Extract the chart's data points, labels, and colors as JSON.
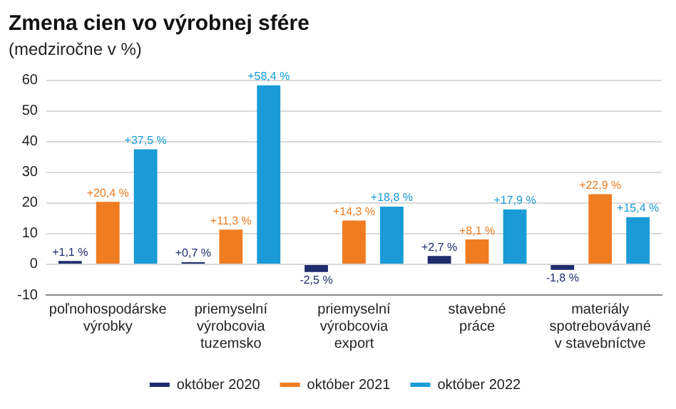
{
  "chart_data": {
    "type": "bar",
    "title": "Zmena cien vo výrobnej sfére",
    "subtitle": "(medziročne v %)",
    "categories": [
      "poľnohospodárske\nvýrobky",
      "priemyselní\nvýrobcovia\ntuzemsko",
      "priemyselní\nvýrobcovia\nexport",
      "stavebné\npráce",
      "materiály\nspotrebovávané\nv stavebníctve"
    ],
    "series": [
      {
        "name": "október 2020",
        "color": "#1f2d6e",
        "values": [
          1.1,
          0.7,
          -2.5,
          2.7,
          -1.8
        ],
        "value_labels": [
          "+1,1 %",
          "+0,7 %",
          "-2,5 %",
          "+2,7 %",
          "-1,8 %"
        ]
      },
      {
        "name": "október 2021",
        "color": "#f07c22",
        "values": [
          20.4,
          11.3,
          14.3,
          8.1,
          22.9
        ],
        "value_labels": [
          "+20,4 %",
          "+11,3 %",
          "+14,3 %",
          "+8,1 %",
          "+22,9 %"
        ]
      },
      {
        "name": "október 2022",
        "color": "#1a9bd7",
        "values": [
          37.5,
          58.4,
          18.8,
          17.9,
          15.4
        ],
        "value_labels": [
          "+37,5 %",
          "+58,4 %",
          "+18,8 %",
          "+17,9 %",
          "+15,4 %"
        ]
      }
    ],
    "ylim": [
      -10,
      60
    ],
    "yticks": [
      -10,
      0,
      10,
      20,
      30,
      40,
      50,
      60
    ],
    "grid": "y",
    "legend": "bottom"
  }
}
